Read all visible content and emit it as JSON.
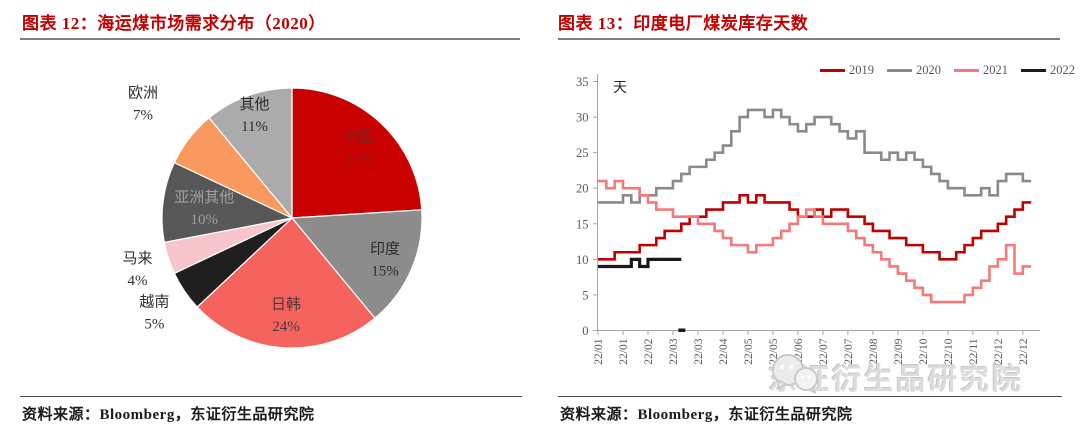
{
  "left_panel": {
    "title": "图表 12：海运煤市场需求分布（2020）",
    "source": "资料来源：Bloomberg，东证衍生品研究院"
  },
  "right_panel": {
    "title": "图表 13：印度电厂煤炭库存天数",
    "source": "资料来源：Bloomberg，东证衍生品研究院"
  },
  "watermark": {
    "text": "东证衍生品研究院",
    "logo": "wechat-bubbles-icon"
  },
  "chart_data": [
    {
      "type": "pie",
      "title": "海运煤市场需求分布（2020）",
      "start_angle_deg": 0,
      "clockwise": true,
      "slices": [
        {
          "label": "中国",
          "pct": 24,
          "color": "#C90000",
          "label_color": "#8C1C1C",
          "inside": true,
          "label_r": 0.75
        },
        {
          "label": "印度",
          "pct": 15,
          "color": "#8C8C8C",
          "label_color": "#2b2b2b",
          "inside": true,
          "label_r": 0.78
        },
        {
          "label": "日韩",
          "pct": 24,
          "color": "#F4635E",
          "label_color": "#4a3a3a",
          "inside": true,
          "label_r": 0.74
        },
        {
          "label": "越南",
          "pct": 5,
          "color": "#1F1F1F",
          "label_color": "#303030",
          "inside": false,
          "label_r": 1.28
        },
        {
          "label": "马来",
          "pct": 4,
          "color": "#F6C6CC",
          "label_color": "#303030",
          "inside": false,
          "label_r": 1.25
        },
        {
          "label": "亚洲其他",
          "pct": 10,
          "color": "#575757",
          "label_color": "#a0a0a0",
          "inside": true,
          "label_r": 0.68
        },
        {
          "label": "欧洲",
          "pct": 7,
          "color": "#F9985F",
          "label_color": "#303030",
          "inside": false,
          "label_r": 1.45
        },
        {
          "label": "其他",
          "pct": 11,
          "color": "#ABABAB",
          "label_color": "#2b2b2b",
          "inside": true,
          "label_r": 0.85
        }
      ]
    },
    {
      "type": "line",
      "title": "印度电厂煤炭库存天数",
      "unit": "天",
      "ylim": [
        0,
        35
      ],
      "ytick_step": 5,
      "grid": false,
      "legend_position": "top-right",
      "weeks_per_tick": 3,
      "x_tick_labels": [
        "22/01",
        "22/01",
        "22/02",
        "22/03",
        "22/03",
        "22/04",
        "22/05",
        "22/05",
        "22/06",
        "22/07",
        "22/07",
        "22/08",
        "22/09",
        "22/10",
        "22/10",
        "22/11",
        "22/12",
        "22/12"
      ],
      "series": [
        {
          "name": "2019",
          "color": "#C00000",
          "width": 2.6,
          "values": [
            10,
            10,
            11,
            11,
            11,
            12,
            12,
            13,
            14,
            14,
            15,
            16,
            16,
            17,
            17,
            18,
            18,
            19,
            18,
            19,
            18,
            18,
            18,
            17,
            16,
            16,
            17,
            16,
            17,
            17,
            16,
            16,
            15,
            14,
            14,
            13,
            13,
            12,
            12,
            11,
            11,
            10,
            10,
            11,
            12,
            13,
            14,
            14,
            15,
            16,
            17,
            18
          ]
        },
        {
          "name": "2020",
          "color": "#8A8A8A",
          "width": 2.6,
          "values": [
            18,
            18,
            18,
            19,
            18,
            19,
            19,
            20,
            20,
            21,
            22,
            23,
            23,
            24,
            25,
            26,
            28,
            30,
            31,
            31,
            30,
            31,
            30,
            29,
            28,
            29,
            30,
            30,
            29,
            28,
            27,
            28,
            25,
            25,
            24,
            25,
            24,
            25,
            24,
            23,
            22,
            21,
            20,
            20,
            19,
            19,
            20,
            19,
            21,
            22,
            22,
            21
          ]
        },
        {
          "name": "2021",
          "color": "#F4797B",
          "width": 2.6,
          "values": [
            21,
            20,
            21,
            20,
            20,
            19,
            18,
            17,
            17,
            16,
            16,
            16,
            15,
            15,
            14,
            13,
            12,
            12,
            11,
            12,
            12,
            13,
            14,
            15,
            16,
            17,
            16,
            15,
            15,
            15,
            14,
            13,
            12,
            11,
            10,
            9,
            8,
            7,
            6,
            5,
            4,
            4,
            4,
            4,
            5,
            6,
            7,
            9,
            10,
            12,
            8,
            9
          ]
        },
        {
          "name": "2022",
          "color": "#1A1A1A",
          "width": 3.2,
          "values": [
            9,
            9,
            9,
            9,
            10,
            9,
            10,
            10,
            10,
            10
          ]
        }
      ],
      "stray_point": {
        "series": "2022",
        "week": 11,
        "value": 0
      }
    }
  ]
}
